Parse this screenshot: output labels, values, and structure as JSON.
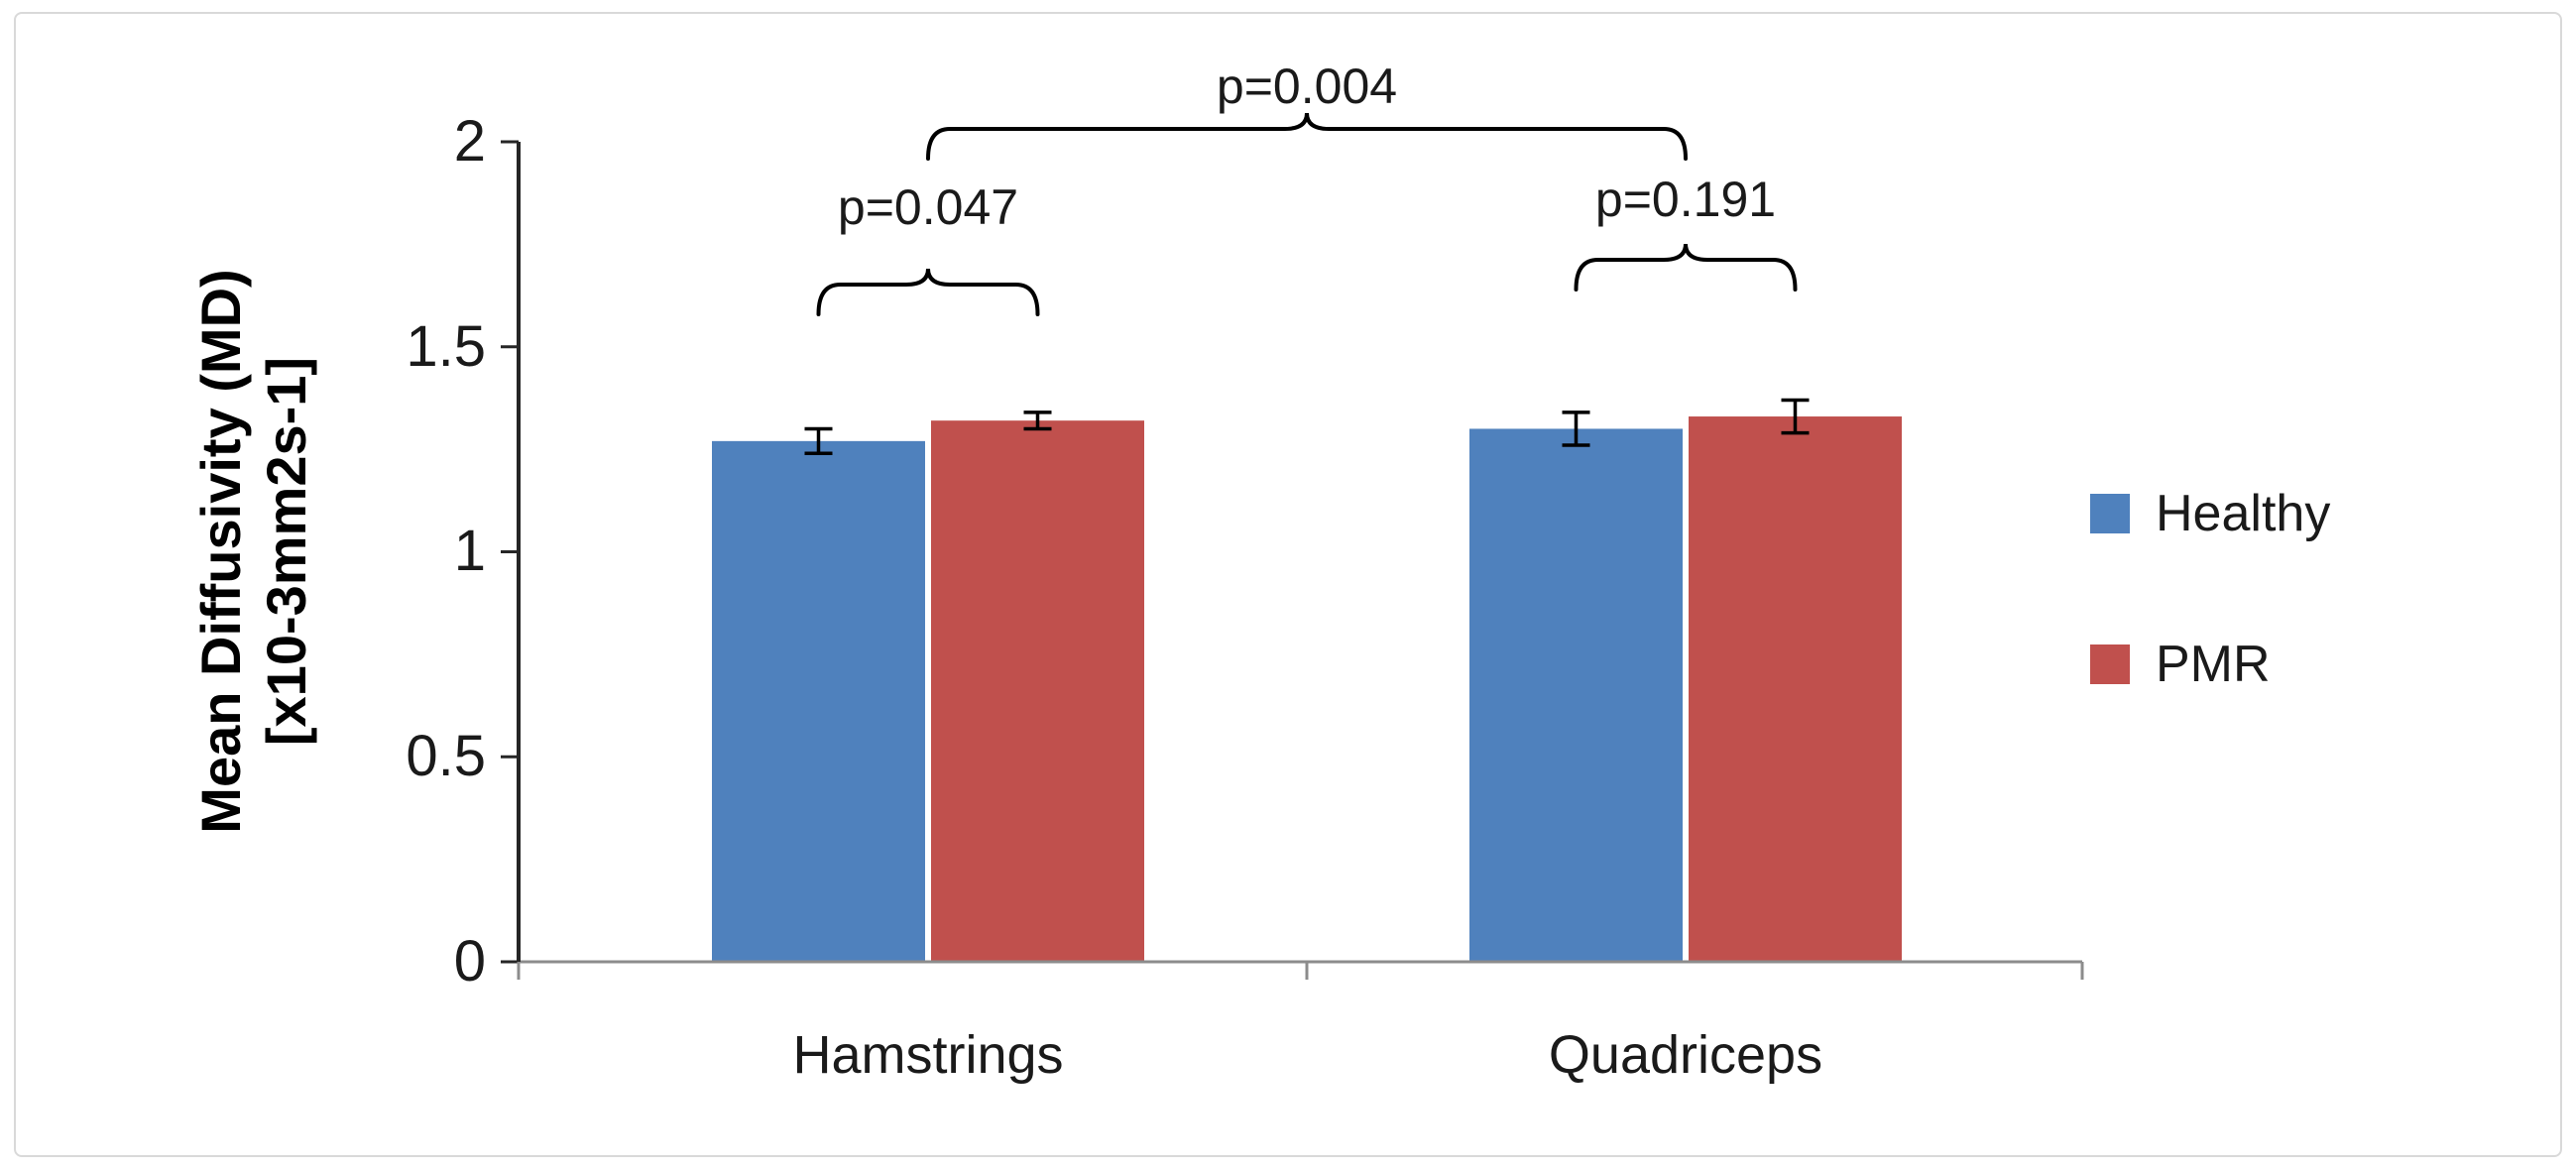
{
  "figure": {
    "background": "#ffffff",
    "border_color": "#d9d9d9",
    "text_color": "#1a1a1a"
  },
  "chart_data": {
    "type": "bar",
    "title": "",
    "categories": [
      "Hamstrings",
      "Quadriceps"
    ],
    "series": [
      {
        "name": "Healthy",
        "color": "#4F81BD",
        "values": [
          1.27,
          1.3
        ],
        "errors": [
          0.03,
          0.04
        ]
      },
      {
        "name": "PMR",
        "color": "#C0504D",
        "values": [
          1.32,
          1.33
        ],
        "errors": [
          0.02,
          0.04
        ]
      }
    ],
    "ylabel_line1": "Mean Diffusivity (MD)",
    "ylabel_line2": "[x10-3mm2s-1]",
    "xlabel": "",
    "ylim": [
      0,
      2
    ],
    "ytick_step": 0.5,
    "ytick_labels_top_to_bottom": [
      "2",
      "1.5",
      "1",
      "0.5",
      "0"
    ],
    "grid": false,
    "legend": {
      "position": "right",
      "entries": [
        "Healthy",
        "PMR"
      ]
    },
    "annotations": [
      {
        "label": "p=0.047",
        "compares": "Hamstrings: Healthy vs PMR"
      },
      {
        "label": "p=0.191",
        "compares": "Quadriceps: Healthy vs PMR"
      },
      {
        "label": "p=0.004",
        "compares": "Hamstrings vs Quadriceps"
      }
    ]
  }
}
